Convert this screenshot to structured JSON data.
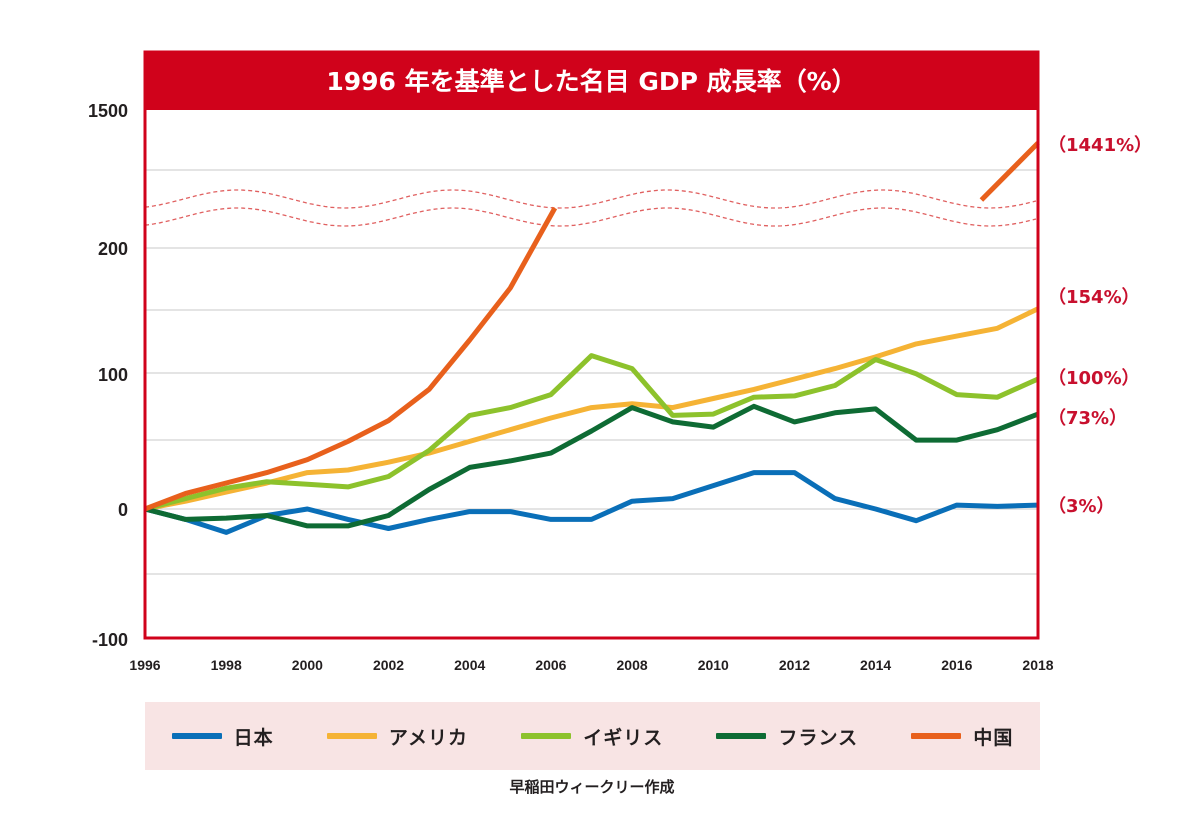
{
  "chart_data": {
    "type": "line",
    "title": "1996 年を基準とした名目 GDP 成長率（%）",
    "xlabel": "",
    "ylabel": "",
    "x": [
      1996,
      1997,
      1998,
      1999,
      2000,
      2001,
      2002,
      2003,
      2004,
      2005,
      2006,
      2007,
      2008,
      2009,
      2010,
      2011,
      2012,
      2013,
      2014,
      2015,
      2016,
      2017,
      2018
    ],
    "x_tick_labels": [
      "1996",
      "1998",
      "2000",
      "2002",
      "2004",
      "2006",
      "2008",
      "2010",
      "2012",
      "2014",
      "2016",
      "2018"
    ],
    "y_tick_labels": [
      "1500",
      "200",
      "100",
      "0",
      "-100"
    ],
    "axis_break": {
      "lower_range": [
        -100,
        250
      ],
      "upper_label": "1500",
      "note": "wavy broken-axis between 200 and 1500"
    },
    "series": [
      {
        "name": "日本",
        "color": "#0a6fb8",
        "values": [
          0,
          -8,
          -18,
          -5,
          0,
          -8,
          -15,
          -8,
          -2,
          -2,
          -8,
          -8,
          6,
          8,
          18,
          28,
          28,
          8,
          0,
          -9,
          3,
          2,
          3
        ]
      },
      {
        "name": "アメリカ",
        "color": "#f5b335",
        "values": [
          0,
          6,
          13,
          20,
          28,
          30,
          36,
          43,
          52,
          61,
          70,
          78,
          81,
          78,
          85,
          92,
          100,
          108,
          117,
          127,
          133,
          139,
          154
        ]
      },
      {
        "name": "イギリス",
        "color": "#8dc22c",
        "values": [
          0,
          8,
          16,
          21,
          19,
          17,
          25,
          45,
          72,
          78,
          88,
          118,
          108,
          72,
          73,
          86,
          87,
          95,
          115,
          104,
          88,
          86,
          100
        ]
      },
      {
        "name": "フランス",
        "color": "#0e6b34",
        "values": [
          0,
          -8,
          -7,
          -5,
          -13,
          -13,
          -5,
          15,
          32,
          37,
          43,
          60,
          78,
          67,
          63,
          79,
          67,
          74,
          77,
          53,
          53,
          61,
          73
        ]
      },
      {
        "name": "中国",
        "color": "#e8601c",
        "values": [
          0,
          12,
          20,
          28,
          38,
          52,
          68,
          92,
          130,
          170,
          240,
          null,
          null,
          null,
          null,
          null,
          null,
          null,
          null,
          null,
          null,
          1250,
          1441
        ]
      }
    ],
    "end_labels": [
      "（1441%）",
      "（154%）",
      "（100%）",
      "（73%）",
      "（3%）"
    ]
  },
  "legend": {
    "items": [
      {
        "label": "日本",
        "color": "#0a6fb8"
      },
      {
        "label": "アメリカ",
        "color": "#f5b335"
      },
      {
        "label": "イギリス",
        "color": "#8dc22c"
      },
      {
        "label": "フランス",
        "color": "#0e6b34"
      },
      {
        "label": "中国",
        "color": "#e8601c"
      }
    ]
  },
  "source": "早稲田ウィークリー作成",
  "colors": {
    "frame": "#d0021b",
    "break_line": "#e06060",
    "grid": "#c8c8c8",
    "legend_bg": "#f8e4e4"
  }
}
